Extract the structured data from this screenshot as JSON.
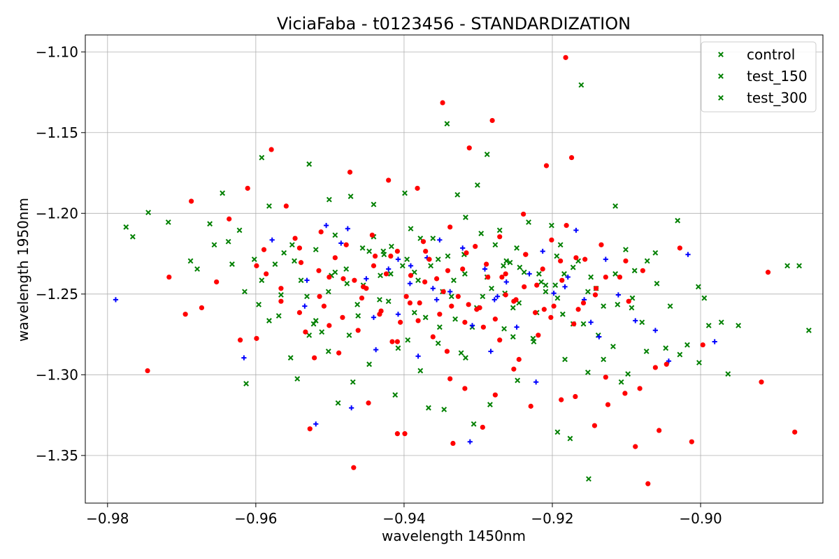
{
  "chart_data": {
    "type": "scatter",
    "title": "ViciaFaba - t0123456 - STANDARDIZATION",
    "xlabel": "wavelength 1450nm",
    "ylabel": "wavelength 1950nm",
    "xlim": [
      -0.983,
      -0.8835
    ],
    "ylim": [
      -1.3795,
      -1.0895
    ],
    "x_ticks": [
      -0.98,
      -0.96,
      -0.94,
      -0.92,
      -0.9
    ],
    "x_tick_labels": [
      "−0.98",
      "−0.96",
      "−0.94",
      "−0.92",
      "−0.90"
    ],
    "y_ticks": [
      -1.1,
      -1.15,
      -1.2,
      -1.25,
      -1.3,
      -1.35
    ],
    "y_tick_labels": [
      "−1.10",
      "−1.15",
      "−1.20",
      "−1.25",
      "−1.30",
      "−1.35"
    ],
    "grid": true,
    "legend_position": "top-right",
    "legend": [
      "control",
      "test_150",
      "test_300"
    ],
    "series": [
      {
        "name": "control",
        "color": "#008000",
        "marker": "x",
        "x": [
          -0.9775,
          -0.9766,
          -0.9745,
          -0.9718,
          -0.9688,
          -0.9679,
          -0.9662,
          -0.9656,
          -0.9645,
          -0.9637,
          -0.9622,
          -0.9602,
          -0.9592,
          -0.9582,
          -0.9574,
          -0.9562,
          -0.9551,
          -0.9528,
          -0.9519,
          -0.9501,
          -0.9493,
          -0.9472,
          -0.9456,
          -0.9441,
          -0.9428,
          -0.9417,
          -0.9399,
          -0.9391,
          -0.9378,
          -0.9364,
          -0.9342,
          -0.9328,
          -0.9317,
          -0.9301,
          -0.9288,
          -0.9271,
          -0.9262,
          -0.9248,
          -0.9232,
          -0.9215,
          -0.9201,
          -0.9189,
          -0.9172,
          -0.9161,
          -0.9148,
          -0.9131,
          -0.9115,
          -0.9101,
          -0.9089,
          -0.9072,
          -0.9061,
          -0.9041,
          -0.9031,
          -0.9018,
          -0.9003,
          -0.8989,
          -0.8972,
          -0.8949,
          -0.8883,
          -0.8867,
          -0.8854,
          -0.9613,
          -0.9553,
          -0.9469,
          -0.9346,
          -0.9306,
          -0.9193,
          -0.9176,
          -0.9151,
          -0.9107,
          -0.9544,
          -0.9489,
          -0.9412,
          -0.9367,
          -0.9284,
          -0.9247,
          -0.9152,
          -0.9131,
          -0.9098,
          -0.9073,
          -0.9522,
          -0.9395,
          -0.9331,
          -0.9253,
          -0.9172,
          -0.9118,
          -0.9047,
          -0.9002,
          -0.9477,
          -0.9433,
          -0.9302,
          -0.9264,
          -0.9218,
          -0.9193,
          -0.9141,
          -0.9093,
          -0.9059,
          -0.9582,
          -0.9511,
          -0.9354
        ],
        "y": [
          -1.2085,
          -1.2145,
          -1.1995,
          -1.2055,
          -1.2295,
          -1.2345,
          -1.2065,
          -1.2195,
          -1.1875,
          -1.2175,
          -1.2105,
          -1.2285,
          -1.1655,
          -1.1955,
          -1.2315,
          -1.2245,
          -1.2195,
          -1.1695,
          -1.2225,
          -1.1915,
          -1.2365,
          -1.1895,
          -1.2215,
          -1.1945,
          -1.2235,
          -1.2205,
          -1.1875,
          -1.2095,
          -1.2155,
          -1.2325,
          -1.1445,
          -1.1885,
          -1.2025,
          -1.1825,
          -1.1635,
          -1.2105,
          -1.2295,
          -1.2215,
          -1.2055,
          -1.2425,
          -1.2075,
          -1.2195,
          -1.2335,
          -1.1205,
          -1.2395,
          -1.2575,
          -1.1955,
          -1.2225,
          -1.2355,
          -1.2295,
          -1.2245,
          -1.2575,
          -1.2045,
          -1.2815,
          -1.2455,
          -1.2695,
          -1.2675,
          -1.2695,
          -1.2325,
          -1.2325,
          -1.2725,
          -1.3055,
          -1.2895,
          -1.3045,
          -1.3215,
          -1.3305,
          -1.3355,
          -1.3395,
          -1.3645,
          -1.3045,
          -1.3025,
          -1.3175,
          -1.3125,
          -1.3205,
          -1.3185,
          -1.3035,
          -1.2985,
          -1.2905,
          -1.2995,
          -1.2855,
          -1.2685,
          -1.2785,
          -1.2655,
          -1.2765,
          -1.2685,
          -1.2825,
          -1.2835,
          -1.2925,
          -1.2435,
          -1.2535,
          -1.2585,
          -1.2495,
          -1.2375,
          -1.2525,
          -1.2465,
          -1.2585,
          -1.2435,
          -1.2665,
          -1.2735,
          -1.2805
        ]
      },
      {
        "name": "test_150",
        "color": "#008000",
        "marker": "x",
        "x": [
          -0.9632,
          -0.9615,
          -0.9569,
          -0.9539,
          -0.9498,
          -0.9455,
          -0.9421,
          -0.9381,
          -0.9354,
          -0.9318,
          -0.9282,
          -0.9245,
          -0.9221,
          -0.9184,
          -0.9165,
          -0.9115,
          -0.9079,
          -0.9028,
          -0.8995,
          -0.8963,
          -0.9596,
          -0.9531,
          -0.9478,
          -0.9427,
          -0.9386,
          -0.9336,
          -0.9288,
          -0.9257,
          -0.9209,
          -0.9158,
          -0.9528,
          -0.9462,
          -0.9408,
          -0.9352,
          -0.9317,
          -0.9265,
          -0.9225,
          -0.9183,
          -0.9138,
          -0.9092,
          -0.9441,
          -0.9396,
          -0.9341,
          -0.9296,
          -0.9244,
          -0.9196,
          -0.9502,
          -0.9447,
          -0.9378,
          -0.9323
        ],
        "y": [
          -1.2315,
          -1.2485,
          -1.2635,
          -1.2415,
          -1.2385,
          -1.2445,
          -1.2545,
          -1.2415,
          -1.2285,
          -1.2375,
          -1.2465,
          -1.2555,
          -1.2615,
          -1.2375,
          -1.2295,
          -1.2375,
          -1.2675,
          -1.2875,
          -1.2525,
          -1.2995,
          -1.2565,
          -1.2515,
          -1.2345,
          -1.2255,
          -1.2365,
          -1.2515,
          -1.2395,
          -1.2305,
          -1.2485,
          -1.2685,
          -1.2755,
          -1.2635,
          -1.2835,
          -1.2705,
          -1.2895,
          -1.2715,
          -1.2795,
          -1.2905,
          -1.2755,
          -1.2525,
          -1.2145,
          -1.2285,
          -1.2265,
          -1.2125,
          -1.2335,
          -1.2445,
          -1.2855,
          -1.2935,
          -1.2975,
          -1.2865
        ]
      },
      {
        "name": "test_300",
        "color": "#008000",
        "marker": "x",
        "x": [
          -0.9592,
          -0.9548,
          -0.9502,
          -0.9463,
          -0.9418,
          -0.9371,
          -0.9333,
          -0.9294,
          -0.9253,
          -0.9209,
          -0.9566,
          -0.9519,
          -0.9474,
          -0.9432,
          -0.9386,
          -0.9348,
          -0.9308,
          -0.9266,
          -0.9226,
          -0.9186,
          -0.9493,
          -0.9447,
          -0.9402,
          -0.9361,
          -0.9319,
          -0.9277,
          -0.9238,
          -0.9194,
          -0.9152,
          -0.9112
        ],
        "y": [
          -1.2415,
          -1.2295,
          -1.2485,
          -1.2565,
          -1.2375,
          -1.2645,
          -1.2415,
          -1.2515,
          -1.2585,
          -1.2445,
          -1.2505,
          -1.2665,
          -1.2755,
          -1.2385,
          -1.2615,
          -1.2485,
          -1.2705,
          -1.2325,
          -1.2775,
          -1.2625,
          -1.2135,
          -1.2235,
          -1.2325,
          -1.2155,
          -1.2255,
          -1.2195,
          -1.2365,
          -1.2265,
          -1.2485,
          -1.2565
        ]
      },
      {
        "name": "",
        "color": "#0000ff",
        "marker": "+",
        "x": [
          -0.9789,
          -0.9616,
          -0.9578,
          -0.9534,
          -0.9519,
          -0.9505,
          -0.9471,
          -0.9451,
          -0.9438,
          -0.9421,
          -0.9408,
          -0.9392,
          -0.9381,
          -0.9369,
          -0.9352,
          -0.9338,
          -0.9321,
          -0.9308,
          -0.9291,
          -0.9278,
          -0.9262,
          -0.9248,
          -0.9231,
          -0.9213,
          -0.9198,
          -0.9183,
          -0.9168,
          -0.9157,
          -0.9148,
          -0.9128,
          -0.9111,
          -0.9088,
          -0.9061,
          -0.9043,
          -0.9017,
          -0.8981,
          -0.9531,
          -0.9485,
          -0.9441,
          -0.9391,
          -0.9356,
          -0.9311,
          -0.9274,
          -0.9222,
          -0.9179,
          -0.9137,
          -0.9476,
          -0.9408,
          -0.9361,
          -0.9283
        ],
        "y": [
          -1.2535,
          -1.2895,
          -1.2165,
          -1.2575,
          -1.3305,
          -1.2075,
          -1.3205,
          -1.2405,
          -1.2845,
          -1.2345,
          -1.2625,
          -1.2435,
          -1.2885,
          -1.2275,
          -1.2165,
          -1.2485,
          -1.2215,
          -1.2695,
          -1.2345,
          -1.2535,
          -1.2425,
          -1.2705,
          -1.2375,
          -1.2235,
          -1.2495,
          -1.2455,
          -1.2105,
          -1.2535,
          -1.2675,
          -1.2285,
          -1.2505,
          -1.2665,
          -1.2725,
          -1.2915,
          -1.2255,
          -1.2795,
          -1.2415,
          -1.2185,
          -1.2645,
          -1.2325,
          -1.2535,
          -1.3415,
          -1.2515,
          -1.3045,
          -1.2395,
          -1.2765,
          -1.2095,
          -1.2285,
          -1.2465,
          -1.2855
        ]
      },
      {
        "name": "",
        "color": "#ff0000",
        "marker": "o",
        "x": [
          -0.9746,
          -0.9717,
          -0.9695,
          -0.9687,
          -0.9673,
          -0.9653,
          -0.9636,
          -0.9621,
          -0.9611,
          -0.9599,
          -0.9586,
          -0.9579,
          -0.9566,
          -0.9559,
          -0.9541,
          -0.9527,
          -0.9514,
          -0.9501,
          -0.9488,
          -0.9473,
          -0.9468,
          -0.9455,
          -0.9439,
          -0.9421,
          -0.9409,
          -0.9392,
          -0.9382,
          -0.9371,
          -0.9356,
          -0.9348,
          -0.9336,
          -0.9321,
          -0.9312,
          -0.9298,
          -0.9281,
          -0.9268,
          -0.9252,
          -0.9239,
          -0.9221,
          -0.9208,
          -0.9189,
          -0.9181,
          -0.9174,
          -0.9158,
          -0.9141,
          -0.9128,
          -0.9109,
          -0.9097,
          -0.9088,
          -0.9071,
          -0.9056,
          -0.9046,
          -0.9028,
          -0.9012,
          -0.8997,
          -0.8918,
          -0.8909,
          -0.8873,
          -0.9182,
          -0.9169,
          -0.9334,
          -0.9294,
          -0.9599,
          -0.9521,
          -0.9448,
          -0.9416,
          -0.9399,
          -0.9338,
          -0.9318,
          -0.9277,
          -0.9252,
          -0.9229,
          -0.9188,
          -0.9143,
          -0.9125,
          -0.9102,
          -0.9082,
          -0.9061,
          -0.9533,
          -0.9501,
          -0.9462,
          -0.9433,
          -0.9409,
          -0.9381,
          -0.9361,
          -0.9342,
          -0.9318,
          -0.9293,
          -0.9271,
          -0.9245,
          -0.9219,
          -0.9202,
          -0.9165,
          -0.9482,
          -0.9451,
          -0.9424,
          -0.9397,
          -0.9372,
          -0.9347,
          -0.9313,
          -0.9287,
          -0.9263,
          -0.9238,
          -0.9211,
          -0.9539,
          -0.9515,
          -0.9493,
          -0.9467,
          -0.9441,
          -0.9418,
          -0.9391,
          -0.9366,
          -0.9341,
          -0.9316,
          -0.9289,
          -0.9263,
          -0.9236,
          -0.9213,
          -0.9187,
          -0.9156,
          -0.9128,
          -0.9101,
          -0.9078,
          -0.9566,
          -0.9541,
          -0.9508,
          -0.9483,
          -0.9457,
          -0.9431,
          -0.9405,
          -0.9379,
          -0.9352,
          -0.9327,
          -0.9302,
          -0.9277,
          -0.9249,
          -0.9223,
          -0.9198,
          -0.9171,
          -0.9142,
          -0.9589,
          -0.9547,
          -0.9512,
          -0.9478,
          -0.9443,
          -0.9409,
          -0.9374,
          -0.9338,
          -0.9304,
          -0.9271,
          -0.9236,
          -0.9201,
          -0.9168,
          -0.9134
        ],
        "y": [
          -1.2975,
          -1.2395,
          -1.2625,
          -1.1925,
          -1.2585,
          -1.2425,
          -1.2035,
          -1.2785,
          -1.1845,
          -1.2325,
          -1.2375,
          -1.1605,
          -1.2465,
          -1.1955,
          -1.2215,
          -1.3335,
          -1.2515,
          -1.2395,
          -1.2865,
          -1.1745,
          -1.3575,
          -1.2455,
          -1.2265,
          -1.1795,
          -1.3365,
          -1.2555,
          -1.1845,
          -1.2235,
          -1.2405,
          -1.1315,
          -1.2575,
          -1.2345,
          -1.1595,
          -1.2585,
          -1.1425,
          -1.2395,
          -1.2545,
          -1.2005,
          -1.2445,
          -1.1705,
          -1.2295,
          -1.2075,
          -1.1655,
          -1.2555,
          -1.2465,
          -1.3015,
          -1.2395,
          -1.2545,
          -1.3445,
          -1.3675,
          -1.3345,
          -1.2935,
          -1.2215,
          -1.3415,
          -1.2815,
          -1.3045,
          -1.2365,
          -1.3355,
          -1.1035,
          -1.3135,
          -1.3425,
          -1.3325,
          -1.2775,
          -1.2895,
          -1.3175,
          -1.2795,
          -1.3365,
          -1.3025,
          -1.3085,
          -1.3125,
          -1.2965,
          -1.3195,
          -1.3155,
          -1.3315,
          -1.3185,
          -1.3115,
          -1.3085,
          -1.2955,
          -1.2735,
          -1.2695,
          -1.2725,
          -1.2625,
          -1.2795,
          -1.2665,
          -1.2765,
          -1.2855,
          -1.2675,
          -1.2705,
          -1.2785,
          -1.2905,
          -1.2755,
          -1.2645,
          -1.2595,
          -1.2405,
          -1.2465,
          -1.2375,
          -1.2515,
          -1.2425,
          -1.2485,
          -1.2565,
          -1.2395,
          -1.2505,
          -1.2455,
          -1.2595,
          -1.2305,
          -1.2355,
          -1.2275,
          -1.2415,
          -1.2325,
          -1.2265,
          -1.2385,
          -1.2285,
          -1.2355,
          -1.2245,
          -1.2315,
          -1.2375,
          -1.2255,
          -1.2345,
          -1.2415,
          -1.2285,
          -1.2395,
          -1.2295,
          -1.2355,
          -1.2545,
          -1.2615,
          -1.2575,
          -1.2645,
          -1.2525,
          -1.2605,
          -1.2675,
          -1.2555,
          -1.2625,
          -1.2515,
          -1.2595,
          -1.2655,
          -1.2535,
          -1.2615,
          -1.2575,
          -1.2685,
          -1.2505,
          -1.2225,
          -1.2155,
          -1.2115,
          -1.2195,
          -1.2135,
          -1.2235,
          -1.2175,
          -1.2085,
          -1.2205,
          -1.2145,
          -1.2255,
          -1.2165,
          -1.2275,
          -1.2195
        ]
      }
    ]
  }
}
